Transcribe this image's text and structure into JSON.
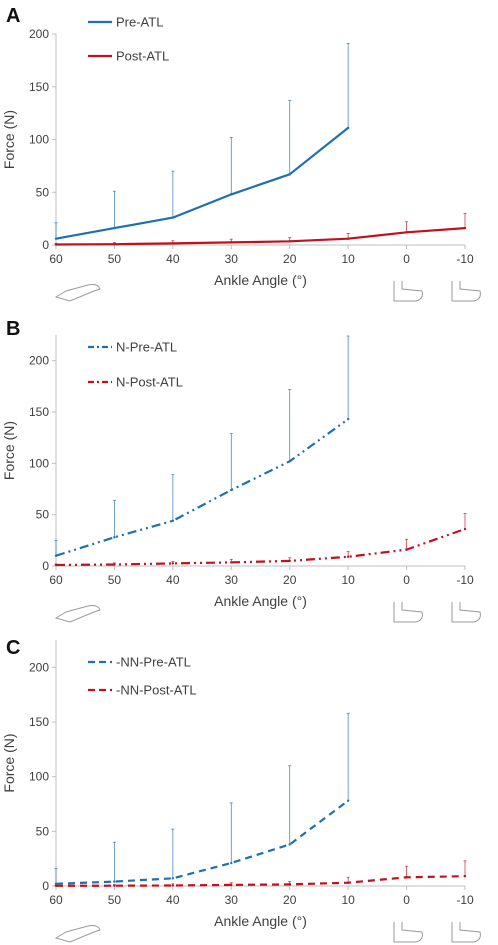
{
  "chart_data": [
    {
      "type": "line",
      "panel": "A",
      "xlabel": "Ankle Angle (°)",
      "ylabel": "Force (N)",
      "ylim": [
        0,
        200
      ],
      "yticks": [
        0,
        50,
        100,
        150,
        200
      ],
      "x": [
        60,
        50,
        40,
        30,
        20,
        10,
        0,
        -10
      ],
      "x_tick_labels": [
        "60",
        "50",
        "40",
        "30",
        "20",
        "10",
        "0",
        "-10"
      ],
      "legend_position": "top-left",
      "series": [
        {
          "name": "Pre-ATL",
          "color": "#1f6fb2",
          "dash": "solid",
          "x": [
            60,
            50,
            40,
            30,
            20,
            10
          ],
          "values": [
            6,
            16,
            26,
            48,
            67,
            111
          ],
          "err_plus": [
            15,
            35,
            44,
            54,
            70,
            80
          ]
        },
        {
          "name": "Post-ATL",
          "color": "#c0111f",
          "dash": "solid",
          "x": [
            60,
            50,
            40,
            30,
            20,
            10,
            0,
            -10
          ],
          "values": [
            0.5,
            0.8,
            1.5,
            2.5,
            3.5,
            6,
            12,
            16
          ],
          "err_plus": [
            1,
            1.5,
            2.5,
            3,
            3.5,
            5,
            10,
            14
          ]
        }
      ]
    },
    {
      "type": "line",
      "panel": "B",
      "xlabel": "Ankle Angle (°)",
      "ylabel": "Force (N)",
      "ylim": [
        0,
        225
      ],
      "yticks": [
        0,
        50,
        100,
        150,
        200
      ],
      "x": [
        60,
        50,
        40,
        30,
        20,
        10,
        0,
        -10
      ],
      "x_tick_labels": [
        "60",
        "50",
        "40",
        "30",
        "20",
        "10",
        "0",
        "-10"
      ],
      "legend_position": "top-left",
      "series": [
        {
          "name": "N-Pre-ATL",
          "color": "#1f6fb2",
          "dash": "dashdotdot",
          "x": [
            60,
            50,
            40,
            30,
            20,
            10
          ],
          "values": [
            10,
            28,
            44,
            74,
            102,
            143
          ],
          "err_plus": [
            15,
            36,
            45,
            55,
            70,
            81
          ]
        },
        {
          "name": "N-Post-ATL",
          "color": "#c0111f",
          "dash": "dashdotdot",
          "x": [
            60,
            50,
            40,
            30,
            20,
            10,
            0,
            -10
          ],
          "values": [
            1,
            1.5,
            2.5,
            3.5,
            5,
            9,
            16,
            36
          ],
          "err_plus": [
            1,
            1.5,
            2,
            3,
            3,
            5,
            10,
            15
          ]
        }
      ]
    },
    {
      "type": "line",
      "panel": "C",
      "xlabel": "Ankle Angle (°)",
      "ylabel": "Force (N)",
      "ylim": [
        0,
        225
      ],
      "yticks": [
        0,
        50,
        100,
        150,
        200
      ],
      "x": [
        60,
        50,
        40,
        30,
        20,
        10,
        0,
        -10
      ],
      "x_tick_labels": [
        "60",
        "50",
        "40",
        "30",
        "20",
        "10",
        "0",
        "-10"
      ],
      "legend_position": "top-left",
      "series": [
        {
          "name": "-NN-Pre-ATL",
          "color": "#1f6fb2",
          "dash": "dash",
          "x": [
            60,
            50,
            40,
            30,
            20,
            10
          ],
          "values": [
            2,
            4,
            7,
            21,
            38,
            78
          ],
          "err_plus": [
            14,
            36,
            45,
            55,
            72,
            80
          ]
        },
        {
          "name": "-NN-Post-ATL",
          "color": "#c0111f",
          "dash": "dash",
          "x": [
            60,
            50,
            40,
            30,
            20,
            10,
            0,
            -10
          ],
          "values": [
            0.2,
            0.3,
            0.5,
            1,
            1.5,
            3,
            8,
            9
          ],
          "err_plus": [
            0.5,
            1,
            1.5,
            2,
            2.5,
            5,
            10,
            14
          ]
        }
      ]
    }
  ]
}
